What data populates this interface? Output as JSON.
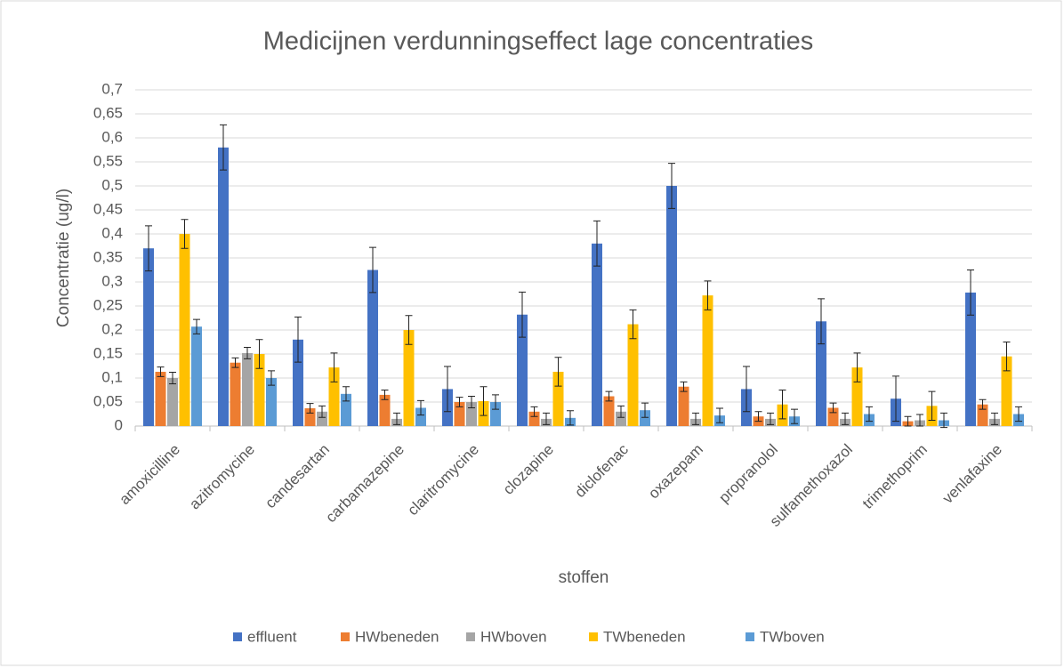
{
  "chart_data": {
    "type": "bar",
    "title": "Medicijnen verdunningseffect lage concentraties",
    "x_label": "stoffen",
    "y_label": "Concentratie (ug/l)",
    "categories": [
      "amoxicilline",
      "azitromycine",
      "candesartan",
      "carbamazepine",
      "claritromycine",
      "clozapine",
      "diclofenac",
      "oxazepam",
      "propranolol",
      "sulfamethoxazol",
      "trimethoprim",
      "venlafaxine"
    ],
    "series": [
      {
        "name": "effluent",
        "color": "#4472c4",
        "values": [
          0.37,
          0.58,
          0.18,
          0.325,
          0.077,
          0.232,
          0.38,
          0.5,
          0.077,
          0.218,
          0.057,
          0.278
        ],
        "errors": [
          0.047,
          0.047,
          0.047,
          0.047,
          0.047,
          0.047,
          0.047,
          0.047,
          0.047,
          0.047,
          0.047,
          0.047
        ]
      },
      {
        "name": "HWbeneden",
        "color": "#ed7d31",
        "values": [
          0.113,
          0.132,
          0.037,
          0.065,
          0.05,
          0.03,
          0.062,
          0.082,
          0.02,
          0.038,
          0.01,
          0.045
        ],
        "errors": [
          0.01,
          0.01,
          0.01,
          0.01,
          0.01,
          0.01,
          0.01,
          0.01,
          0.01,
          0.01,
          0.01,
          0.01
        ]
      },
      {
        "name": "HWboven",
        "color": "#a5a5a5",
        "values": [
          0.1,
          0.152,
          0.03,
          0.015,
          0.05,
          0.015,
          0.03,
          0.015,
          0.015,
          0.015,
          0.012,
          0.015
        ],
        "errors": [
          0.012,
          0.012,
          0.012,
          0.012,
          0.012,
          0.012,
          0.012,
          0.012,
          0.012,
          0.012,
          0.012,
          0.012
        ]
      },
      {
        "name": "TWbeneden",
        "color": "#ffc000",
        "values": [
          0.4,
          0.15,
          0.122,
          0.2,
          0.052,
          0.113,
          0.212,
          0.272,
          0.045,
          0.122,
          0.042,
          0.145
        ],
        "errors": [
          0.03,
          0.03,
          0.03,
          0.03,
          0.03,
          0.03,
          0.03,
          0.03,
          0.03,
          0.03,
          0.03,
          0.03
        ]
      },
      {
        "name": "TWboven",
        "color": "#5b9bd5",
        "values": [
          0.207,
          0.1,
          0.067,
          0.038,
          0.05,
          0.017,
          0.033,
          0.022,
          0.02,
          0.025,
          0.012,
          0.025
        ],
        "errors": [
          0.015,
          0.015,
          0.015,
          0.015,
          0.015,
          0.015,
          0.015,
          0.015,
          0.015,
          0.015,
          0.015,
          0.015
        ]
      }
    ],
    "ylim": [
      0,
      0.7
    ],
    "yticks": [
      0,
      {
        "value": 0.05,
        "label": "0,05"
      },
      {
        "value": 0.1,
        "label": "0,1"
      },
      {
        "value": 0.15,
        "label": "0,15"
      },
      {
        "value": 0.2,
        "label": "0,2"
      },
      {
        "value": 0.25,
        "label": "0,25"
      },
      {
        "value": 0.3,
        "label": "0,3"
      },
      {
        "value": 0.35,
        "label": "0,35"
      },
      {
        "value": 0.4,
        "label": "0,4"
      },
      {
        "value": 0.45,
        "label": "0,45"
      },
      {
        "value": 0.5,
        "label": "0,5"
      },
      {
        "value": 0.55,
        "label": "0,55"
      },
      {
        "value": 0.6,
        "label": "0,6"
      },
      {
        "value": 0.65,
        "label": "0,65"
      },
      {
        "value": 0.7,
        "label": "0,7"
      }
    ],
    "grid": true,
    "legend": "bottom"
  }
}
